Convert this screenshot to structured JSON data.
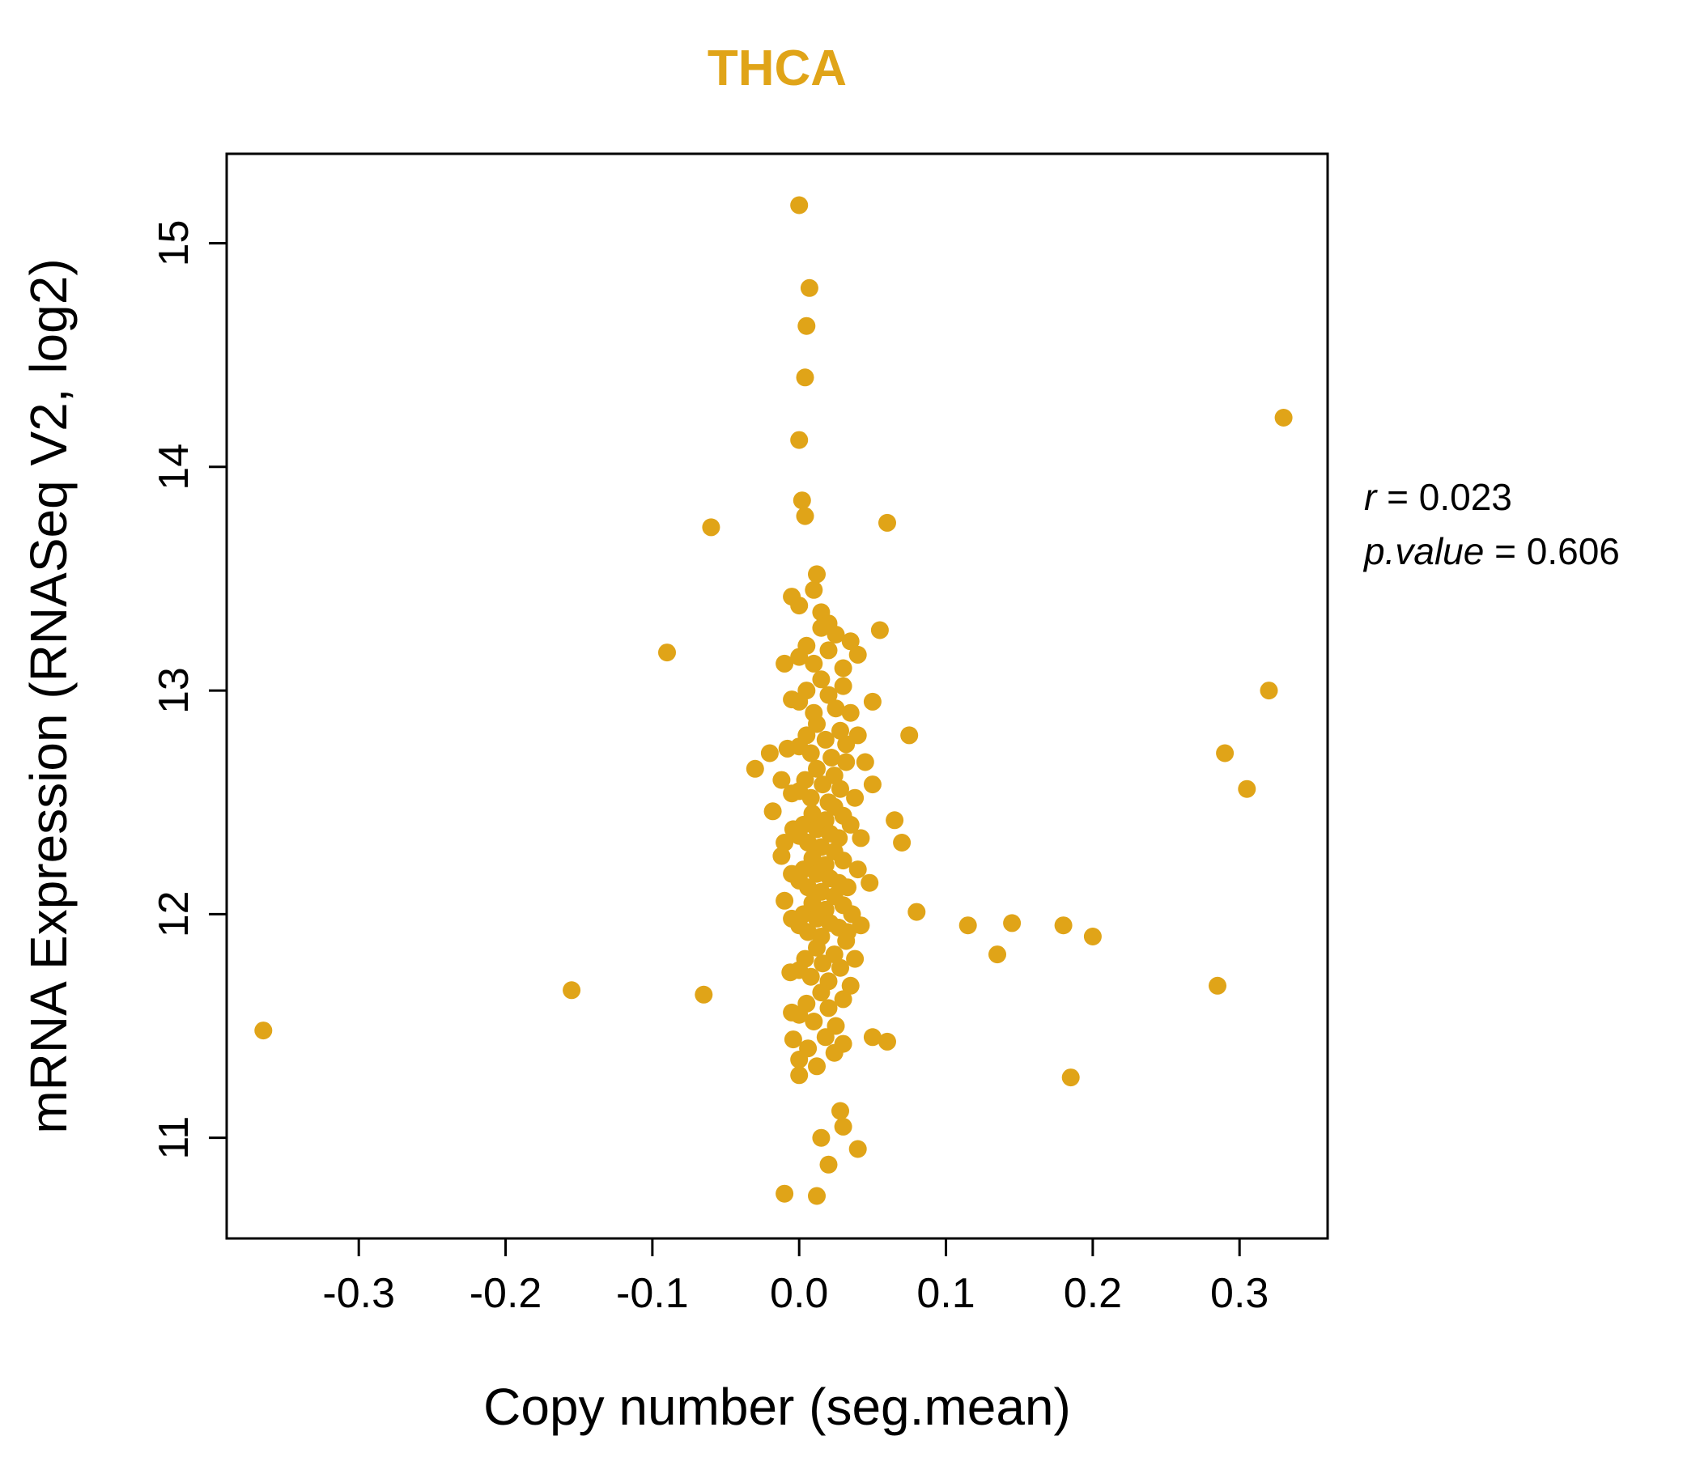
{
  "title": "THCA",
  "colors": {
    "accent": "#E0A418",
    "text": "#000000",
    "plot_border": "#000000",
    "background": "#FFFFFF"
  },
  "annotation": {
    "line1_var": "r",
    "line1_rest": " = 0.023",
    "line2_var": "p.value",
    "line2_rest": " = 0.606"
  },
  "chart_data": {
    "type": "scatter",
    "title": "THCA",
    "xlabel": "Copy number (seg.mean)",
    "ylabel": "mRNA Expression (RNASeq V2, log2)",
    "xlim": [
      -0.39,
      0.36
    ],
    "ylim": [
      10.55,
      15.4
    ],
    "x_ticks": [
      -0.3,
      -0.2,
      -0.1,
      0.0,
      0.1,
      0.2,
      0.3
    ],
    "x_tick_labels": [
      "-0.3",
      "-0.2",
      "-0.1",
      "0.0",
      "0.1",
      "0.2",
      "0.3"
    ],
    "y_ticks": [
      11,
      12,
      13,
      14,
      15
    ],
    "y_tick_labels": [
      "11",
      "12",
      "13",
      "14",
      "15"
    ],
    "grid": false,
    "legend": null,
    "annotation_lines": [
      "r = 0.023",
      "p.value = 0.606"
    ],
    "series": [
      {
        "name": "THCA",
        "color": "#E0A418",
        "points": [
          [
            -0.365,
            11.48
          ],
          [
            -0.155,
            11.66
          ],
          [
            -0.09,
            13.17
          ],
          [
            -0.065,
            11.64
          ],
          [
            -0.06,
            13.73
          ],
          [
            0.0,
            15.17
          ],
          [
            0.007,
            14.8
          ],
          [
            0.005,
            14.63
          ],
          [
            0.004,
            14.4
          ],
          [
            0.0,
            14.12
          ],
          [
            0.002,
            13.85
          ],
          [
            0.004,
            13.78
          ],
          [
            0.06,
            13.75
          ],
          [
            0.33,
            14.22
          ],
          [
            0.32,
            13.0
          ],
          [
            0.29,
            12.72
          ],
          [
            0.305,
            12.56
          ],
          [
            0.285,
            11.68
          ],
          [
            0.055,
            13.27
          ],
          [
            0.075,
            12.8
          ],
          [
            0.08,
            12.01
          ],
          [
            0.115,
            11.95
          ],
          [
            0.135,
            11.82
          ],
          [
            0.145,
            11.96
          ],
          [
            0.18,
            11.95
          ],
          [
            0.2,
            11.9
          ],
          [
            0.185,
            11.27
          ],
          [
            0.065,
            12.42
          ],
          [
            0.07,
            12.32
          ],
          [
            -0.01,
            10.75
          ],
          [
            0.012,
            10.74
          ],
          [
            0.02,
            10.88
          ],
          [
            0.015,
            11.0
          ],
          [
            0.03,
            11.05
          ],
          [
            0.04,
            10.95
          ],
          [
            0.028,
            11.12
          ],
          [
            0.0,
            11.28
          ],
          [
            0.05,
            11.45
          ],
          [
            0.06,
            11.43
          ],
          [
            0.0,
            13.38
          ],
          [
            0.01,
            13.45
          ],
          [
            0.015,
            13.35
          ],
          [
            0.02,
            13.3
          ],
          [
            -0.005,
            13.42
          ],
          [
            0.012,
            13.52
          ],
          [
            0.0,
            13.15
          ],
          [
            0.005,
            13.2
          ],
          [
            0.01,
            13.12
          ],
          [
            0.02,
            13.18
          ],
          [
            0.025,
            13.25
          ],
          [
            0.03,
            13.1
          ],
          [
            0.035,
            13.22
          ],
          [
            -0.01,
            13.12
          ],
          [
            0.015,
            13.28
          ],
          [
            0.04,
            13.16
          ],
          [
            0.0,
            12.95
          ],
          [
            0.005,
            13.0
          ],
          [
            0.01,
            12.9
          ],
          [
            0.015,
            13.05
          ],
          [
            0.02,
            12.98
          ],
          [
            0.025,
            12.92
          ],
          [
            0.03,
            13.02
          ],
          [
            -0.005,
            12.96
          ],
          [
            0.035,
            12.9
          ],
          [
            0.05,
            12.95
          ],
          [
            0.0,
            12.75
          ],
          [
            0.005,
            12.8
          ],
          [
            0.008,
            12.72
          ],
          [
            0.012,
            12.85
          ],
          [
            0.018,
            12.78
          ],
          [
            0.022,
            12.7
          ],
          [
            0.028,
            12.82
          ],
          [
            0.032,
            12.76
          ],
          [
            -0.008,
            12.74
          ],
          [
            -0.02,
            12.72
          ],
          [
            0.04,
            12.8
          ],
          [
            0.045,
            12.68
          ],
          [
            0.0,
            12.55
          ],
          [
            0.004,
            12.6
          ],
          [
            0.008,
            12.52
          ],
          [
            0.012,
            12.65
          ],
          [
            0.016,
            12.58
          ],
          [
            0.02,
            12.5
          ],
          [
            0.024,
            12.62
          ],
          [
            0.028,
            12.56
          ],
          [
            0.032,
            12.68
          ],
          [
            -0.005,
            12.54
          ],
          [
            -0.012,
            12.6
          ],
          [
            -0.03,
            12.65
          ],
          [
            0.038,
            12.52
          ],
          [
            0.05,
            12.58
          ],
          [
            0.0,
            12.35
          ],
          [
            0.003,
            12.4
          ],
          [
            0.006,
            12.32
          ],
          [
            0.009,
            12.45
          ],
          [
            0.012,
            12.38
          ],
          [
            0.015,
            12.3
          ],
          [
            0.018,
            12.42
          ],
          [
            0.021,
            12.36
          ],
          [
            0.024,
            12.48
          ],
          [
            0.027,
            12.34
          ],
          [
            0.03,
            12.44
          ],
          [
            -0.004,
            12.38
          ],
          [
            -0.01,
            12.32
          ],
          [
            -0.018,
            12.46
          ],
          [
            0.035,
            12.4
          ],
          [
            0.042,
            12.34
          ],
          [
            0.0,
            12.15
          ],
          [
            0.003,
            12.2
          ],
          [
            0.006,
            12.12
          ],
          [
            0.009,
            12.25
          ],
          [
            0.012,
            12.18
          ],
          [
            0.015,
            12.1
          ],
          [
            0.018,
            12.22
          ],
          [
            0.021,
            12.16
          ],
          [
            0.024,
            12.28
          ],
          [
            0.027,
            12.14
          ],
          [
            0.03,
            12.24
          ],
          [
            0.033,
            12.12
          ],
          [
            -0.005,
            12.18
          ],
          [
            -0.012,
            12.26
          ],
          [
            0.04,
            12.2
          ],
          [
            0.048,
            12.14
          ],
          [
            0.0,
            11.95
          ],
          [
            0.003,
            12.0
          ],
          [
            0.006,
            11.92
          ],
          [
            0.009,
            12.05
          ],
          [
            0.012,
            11.98
          ],
          [
            0.015,
            11.9
          ],
          [
            0.018,
            12.02
          ],
          [
            0.021,
            11.96
          ],
          [
            0.024,
            12.08
          ],
          [
            0.027,
            11.94
          ],
          [
            0.03,
            12.04
          ],
          [
            0.033,
            11.92
          ],
          [
            0.036,
            12.0
          ],
          [
            -0.005,
            11.98
          ],
          [
            -0.01,
            12.06
          ],
          [
            0.042,
            11.95
          ],
          [
            0.0,
            11.75
          ],
          [
            0.004,
            11.8
          ],
          [
            0.008,
            11.72
          ],
          [
            0.012,
            11.85
          ],
          [
            0.016,
            11.78
          ],
          [
            0.02,
            11.7
          ],
          [
            0.024,
            11.82
          ],
          [
            0.028,
            11.76
          ],
          [
            0.032,
            11.88
          ],
          [
            -0.006,
            11.74
          ],
          [
            0.038,
            11.8
          ],
          [
            0.0,
            11.55
          ],
          [
            0.005,
            11.6
          ],
          [
            0.01,
            11.52
          ],
          [
            0.015,
            11.65
          ],
          [
            0.02,
            11.58
          ],
          [
            0.025,
            11.5
          ],
          [
            0.03,
            11.62
          ],
          [
            -0.005,
            11.56
          ],
          [
            0.035,
            11.68
          ],
          [
            0.0,
            11.35
          ],
          [
            0.006,
            11.4
          ],
          [
            0.012,
            11.32
          ],
          [
            0.018,
            11.45
          ],
          [
            0.024,
            11.38
          ],
          [
            0.03,
            11.42
          ],
          [
            -0.004,
            11.44
          ]
        ]
      }
    ]
  }
}
